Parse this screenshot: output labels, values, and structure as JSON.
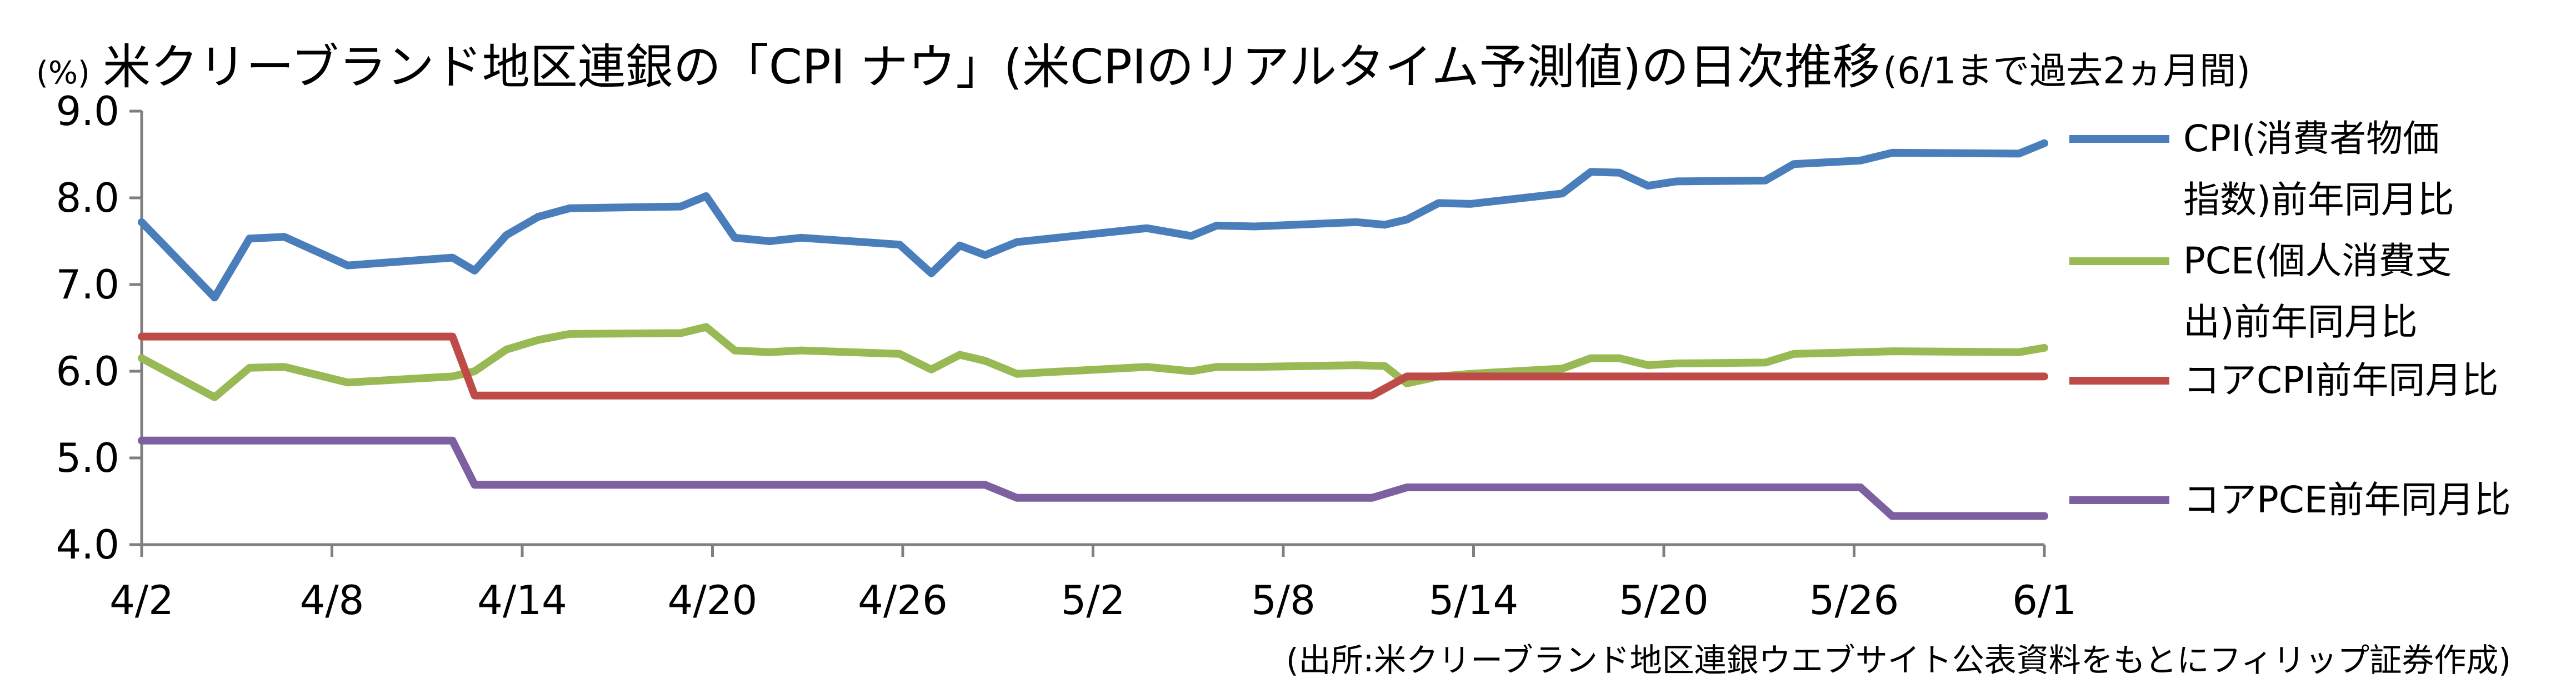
{
  "title": {
    "unit": "(%)",
    "main": "米クリーブランド地区連銀の「CPI ナウ」(米CPIのリアルタイム予測値)の日次推移",
    "note": "(6/1まで過去2ヵ月間)"
  },
  "source": "(出所:米クリーブランド地区連銀ウエブサイト公表資料をもとにフィリップ証券作成)",
  "chart_data": {
    "type": "line",
    "x_unit": "day-of-period (Apr 2 = 0 … Jun 1 = 60)",
    "x_range": [
      0,
      60
    ],
    "x_ticks": [
      0,
      6,
      12,
      18,
      24,
      30,
      36,
      42,
      48,
      54,
      60
    ],
    "x_tick_labels": [
      "4/2",
      "4/8",
      "4/14",
      "4/20",
      "4/26",
      "5/2",
      "5/8",
      "5/14",
      "5/20",
      "5/26",
      "6/1"
    ],
    "ylim": [
      4.0,
      9.0
    ],
    "y_ticks": [
      4.0,
      5.0,
      6.0,
      7.0,
      8.0,
      9.0
    ],
    "y_tick_labels": [
      "4.0",
      "5.0",
      "6.0",
      "7.0",
      "8.0",
      "9.0"
    ],
    "grid": false,
    "legend_position": "right",
    "series": [
      {
        "name_lines": [
          "CPI(消費者物価",
          "指数)前年同月比"
        ],
        "color": "#4a7ebb",
        "points": [
          [
            0,
            7.72
          ],
          [
            2.3,
            6.85
          ],
          [
            3.4,
            7.53
          ],
          [
            4.5,
            7.55
          ],
          [
            6.5,
            7.22
          ],
          [
            9.8,
            7.31
          ],
          [
            10.5,
            7.16
          ],
          [
            11.5,
            7.57
          ],
          [
            12.5,
            7.78
          ],
          [
            13.5,
            7.88
          ],
          [
            17,
            7.9
          ],
          [
            17.8,
            8.02
          ],
          [
            18.7,
            7.54
          ],
          [
            19.8,
            7.5
          ],
          [
            20.8,
            7.54
          ],
          [
            23.9,
            7.46
          ],
          [
            24.9,
            7.13
          ],
          [
            25.8,
            7.45
          ],
          [
            26.6,
            7.34
          ],
          [
            27.6,
            7.49
          ],
          [
            31.7,
            7.65
          ],
          [
            33.1,
            7.56
          ],
          [
            33.9,
            7.68
          ],
          [
            35.1,
            7.67
          ],
          [
            38.3,
            7.72
          ],
          [
            39.2,
            7.69
          ],
          [
            39.9,
            7.75
          ],
          [
            40.9,
            7.94
          ],
          [
            41.9,
            7.93
          ],
          [
            44.8,
            8.05
          ],
          [
            45.7,
            8.3
          ],
          [
            46.6,
            8.29
          ],
          [
            47.5,
            8.14
          ],
          [
            48.4,
            8.19
          ],
          [
            51.2,
            8.2
          ],
          [
            52.1,
            8.39
          ],
          [
            54.2,
            8.43
          ],
          [
            55.2,
            8.52
          ],
          [
            59.2,
            8.51
          ],
          [
            60,
            8.63
          ]
        ]
      },
      {
        "name_lines": [
          "PCE(個人消費支",
          "出)前年同月比"
        ],
        "color": "#98b954",
        "points": [
          [
            0,
            6.15
          ],
          [
            2.3,
            5.7
          ],
          [
            3.4,
            6.04
          ],
          [
            4.5,
            6.05
          ],
          [
            6.5,
            5.87
          ],
          [
            9.8,
            5.94
          ],
          [
            10.5,
            6.0
          ],
          [
            11.5,
            6.25
          ],
          [
            12.5,
            6.36
          ],
          [
            13.5,
            6.43
          ],
          [
            17,
            6.44
          ],
          [
            17.8,
            6.51
          ],
          [
            18.7,
            6.24
          ],
          [
            19.8,
            6.22
          ],
          [
            20.8,
            6.24
          ],
          [
            23.9,
            6.2
          ],
          [
            24.9,
            6.02
          ],
          [
            25.8,
            6.19
          ],
          [
            26.6,
            6.12
          ],
          [
            27.6,
            5.97
          ],
          [
            31.7,
            6.05
          ],
          [
            33.1,
            6.0
          ],
          [
            33.9,
            6.05
          ],
          [
            35.1,
            6.05
          ],
          [
            38.3,
            6.07
          ],
          [
            39.2,
            6.06
          ],
          [
            39.9,
            5.86
          ],
          [
            40.9,
            5.94
          ],
          [
            41.9,
            5.97
          ],
          [
            44.8,
            6.03
          ],
          [
            45.7,
            6.15
          ],
          [
            46.6,
            6.15
          ],
          [
            47.5,
            6.07
          ],
          [
            48.4,
            6.09
          ],
          [
            51.2,
            6.1
          ],
          [
            52.1,
            6.2
          ],
          [
            54.2,
            6.22
          ],
          [
            55.2,
            6.23
          ],
          [
            59.2,
            6.22
          ],
          [
            60,
            6.27
          ]
        ]
      },
      {
        "name_lines": [
          "コアCPI前年同月比"
        ],
        "color": "#be4b48",
        "points": [
          [
            0,
            6.4
          ],
          [
            9.8,
            6.4
          ],
          [
            10.5,
            5.72
          ],
          [
            38.8,
            5.72
          ],
          [
            39.9,
            5.94
          ],
          [
            60,
            5.94
          ]
        ]
      },
      {
        "name_lines": [
          "コアPCE前年同月比"
        ],
        "color": "#7d60a0",
        "points": [
          [
            0,
            5.2
          ],
          [
            9.8,
            5.2
          ],
          [
            10.5,
            4.69
          ],
          [
            26.6,
            4.69
          ],
          [
            27.6,
            4.54
          ],
          [
            38.8,
            4.54
          ],
          [
            39.9,
            4.66
          ],
          [
            54.2,
            4.66
          ],
          [
            55.2,
            4.33
          ],
          [
            60,
            4.33
          ]
        ]
      }
    ]
  }
}
